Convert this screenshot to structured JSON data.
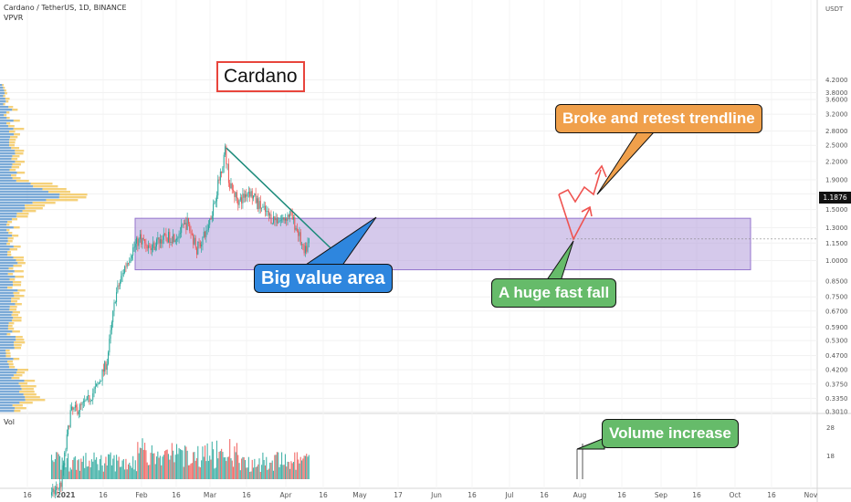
{
  "header": {
    "symbol_line": "Cardano / TetherUS, 1D, BINANCE",
    "indicator": "VPVR",
    "volume_pane_label": "Vol"
  },
  "price_tag": "1.1876",
  "annotations": {
    "title_box": "Cardano",
    "big_value_area": "Big value area",
    "broke_retest": "Broke and retest trendline",
    "huge_fall": "A huge fast fall",
    "volume_increase": "Volume increase"
  },
  "colors": {
    "up": "#26a69a",
    "down": "#ef5350",
    "value_area_fill": "#b39ddb",
    "trendline": "#1b8a7a",
    "callout_blue": "#2e86de",
    "callout_orange": "#f0a04b",
    "callout_green": "#66bb6a",
    "projection": "#ef5350"
  },
  "chart_data": {
    "type": "candlestick",
    "symbol": "ADAUSDT",
    "timeframe": "1D",
    "y_scale": "log",
    "y_ticks": [
      "4.2000",
      "3.8000",
      "3.6000",
      "3.2000",
      "2.8000",
      "2.5000",
      "2.2000",
      "1.9000",
      "1.7000",
      "1.5000",
      "1.3000",
      "1.1500",
      "1.0000",
      "0.8500",
      "0.7500",
      "0.6700",
      "0.5900",
      "0.5300",
      "0.4700",
      "0.4200",
      "0.3750",
      "0.3350",
      "0.3010"
    ],
    "y_unit": "USDT",
    "x_ticks": [
      "16",
      "2021",
      "16",
      "Feb",
      "16",
      "Mar",
      "16",
      "Apr",
      "16",
      "May",
      "17",
      "Jun",
      "16",
      "Jul",
      "16",
      "Aug",
      "16",
      "Sep",
      "16",
      "Oct",
      "16",
      "Nov"
    ],
    "value_area": [
      0.93,
      1.4
    ],
    "trendline": [
      {
        "date": "2021-05-17",
        "price": 2.45
      },
      {
        "date": "2021-08-18",
        "price": 1.06
      }
    ],
    "last_price": 1.1876,
    "volume_ticks": [
      "28",
      "18"
    ],
    "price_path": [
      [
        "2020-12-20",
        0.155
      ],
      [
        "2020-12-28",
        0.17
      ],
      [
        "2021-01-05",
        0.3
      ],
      [
        "2021-01-13",
        0.31
      ],
      [
        "2021-01-20",
        0.33
      ],
      [
        "2021-01-28",
        0.37
      ],
      [
        "2021-02-05",
        0.45
      ],
      [
        "2021-02-12",
        0.75
      ],
      [
        "2021-02-20",
        0.95
      ],
      [
        "2021-02-27",
        1.1
      ],
      [
        "2021-03-05",
        1.2
      ],
      [
        "2021-03-14",
        1.1
      ],
      [
        "2021-03-21",
        1.18
      ],
      [
        "2021-03-28",
        1.2
      ],
      [
        "2021-04-05",
        1.22
      ],
      [
        "2021-04-14",
        1.35
      ],
      [
        "2021-04-22",
        1.1
      ],
      [
        "2021-04-30",
        1.25
      ],
      [
        "2021-05-07",
        1.6
      ],
      [
        "2021-05-16",
        2.4
      ],
      [
        "2021-05-20",
        1.8
      ],
      [
        "2021-05-28",
        1.6
      ],
      [
        "2021-06-05",
        1.75
      ],
      [
        "2021-06-14",
        1.55
      ],
      [
        "2021-06-24",
        1.4
      ],
      [
        "2021-07-03",
        1.38
      ],
      [
        "2021-07-10",
        1.45
      ],
      [
        "2021-07-17",
        1.25
      ],
      [
        "2021-07-22",
        1.05
      ],
      [
        "2021-07-27",
        1.19
      ]
    ]
  }
}
